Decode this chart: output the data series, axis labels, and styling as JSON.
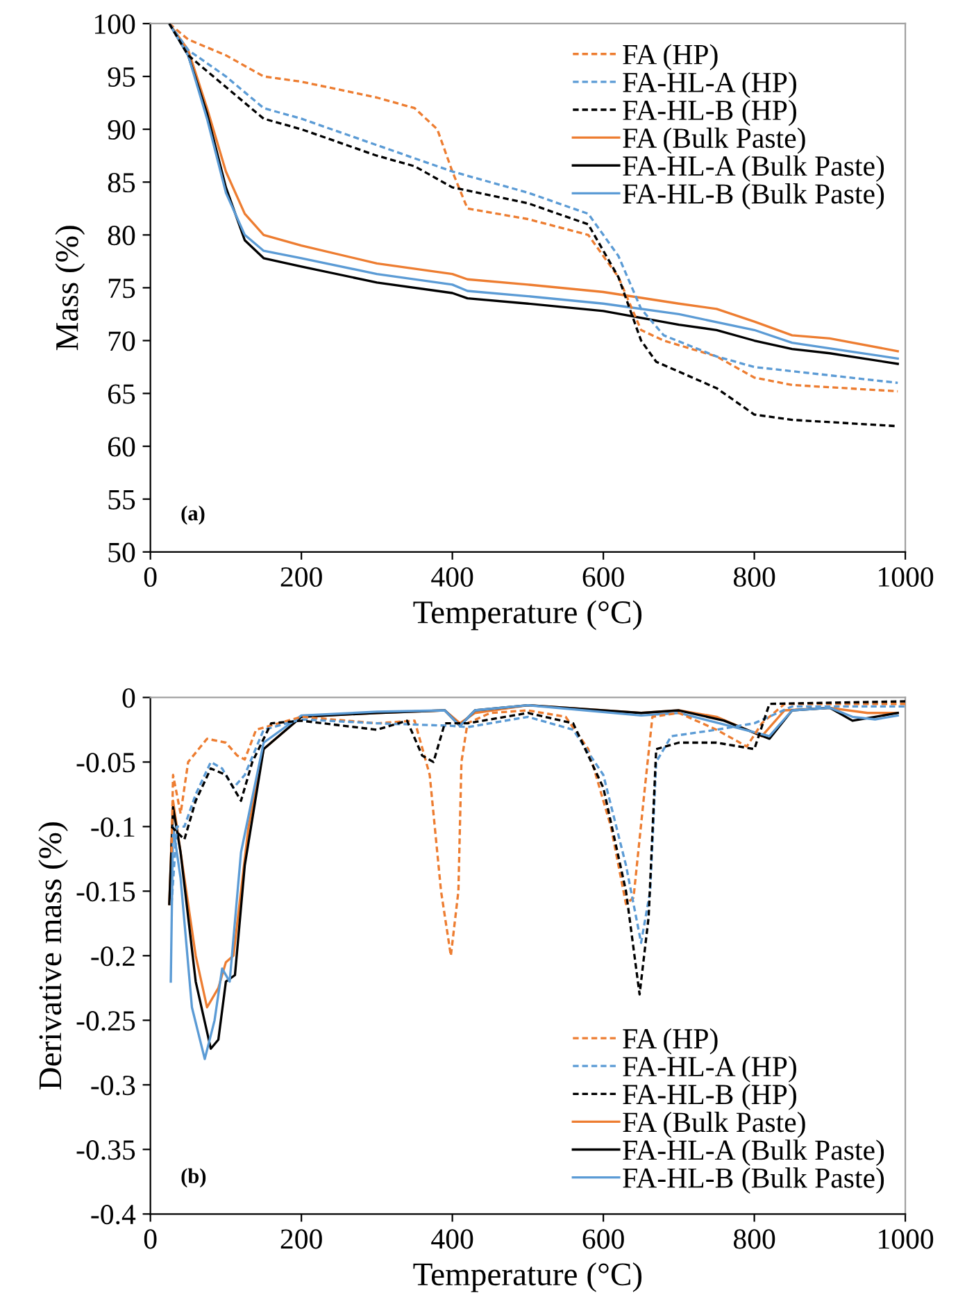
{
  "chart_data": [
    {
      "type": "line",
      "xlabel": "Temperature (°C)",
      "ylabel": "Mass (%)",
      "xlim": [
        0,
        1000
      ],
      "xticks": [
        0,
        200,
        400,
        600,
        800,
        1000
      ],
      "ylim": [
        50,
        100
      ],
      "yticks": [
        50,
        55,
        60,
        65,
        70,
        75,
        80,
        85,
        90,
        95,
        100
      ],
      "grid": false,
      "legend": "top right",
      "marker": "none",
      "annotations": [
        "(a)"
      ],
      "series": [
        {
          "name": "FA (HP)",
          "color": "#ed7d31",
          "line_style": "dashed",
          "x": [
            25,
            50,
            100,
            150,
            200,
            300,
            350,
            380,
            400,
            420,
            500,
            580,
            620,
            650,
            680,
            750,
            800,
            850,
            990
          ],
          "values": [
            100,
            98.5,
            97,
            95,
            94.5,
            93,
            92,
            90,
            86,
            82.5,
            81.5,
            80,
            76,
            71,
            70,
            68.5,
            66.5,
            65.8,
            65.2
          ]
        },
        {
          "name": "FA-HL-A (HP)",
          "color": "#5b9bd5",
          "line_style": "dashed",
          "x": [
            25,
            50,
            100,
            150,
            200,
            300,
            400,
            500,
            580,
            620,
            650,
            680,
            750,
            800,
            990
          ],
          "values": [
            100,
            97.5,
            95,
            92,
            91,
            88.5,
            86,
            84,
            82,
            78,
            73,
            70.5,
            68.5,
            67.5,
            66
          ]
        },
        {
          "name": "FA-HL-B (HP)",
          "color": "#000000",
          "line_style": "dashed",
          "x": [
            25,
            50,
            100,
            150,
            200,
            300,
            350,
            400,
            500,
            580,
            620,
            650,
            670,
            750,
            800,
            850,
            990
          ],
          "values": [
            100,
            97,
            94,
            91,
            90,
            87.5,
            86.5,
            84.5,
            83,
            81,
            76,
            70,
            68,
            65.5,
            63,
            62.5,
            61.9
          ]
        },
        {
          "name": "FA (Bulk Paste)",
          "color": "#ed7d31",
          "line_style": "solid",
          "x": [
            25,
            50,
            75,
            100,
            125,
            150,
            200,
            300,
            400,
            420,
            500,
            600,
            700,
            750,
            800,
            850,
            900,
            990
          ],
          "values": [
            100,
            97.5,
            92,
            86,
            82,
            80,
            79,
            77.3,
            76.3,
            75.8,
            75.3,
            74.6,
            73.5,
            73,
            71.8,
            70.5,
            70.2,
            69
          ]
        },
        {
          "name": "FA-HL-A (Bulk Paste)",
          "color": "#000000",
          "line_style": "solid",
          "x": [
            25,
            50,
            75,
            100,
            125,
            150,
            200,
            300,
            400,
            420,
            500,
            600,
            700,
            750,
            800,
            850,
            900,
            990
          ],
          "values": [
            100,
            97,
            91.5,
            84.5,
            79.5,
            77.8,
            77,
            75.5,
            74.5,
            74,
            73.5,
            72.8,
            71.5,
            71,
            70,
            69.2,
            68.8,
            67.8
          ]
        },
        {
          "name": "FA-HL-B (Bulk Paste)",
          "color": "#5b9bd5",
          "line_style": "solid",
          "x": [
            25,
            50,
            75,
            100,
            125,
            150,
            200,
            300,
            400,
            420,
            500,
            600,
            700,
            800,
            850,
            990
          ],
          "values": [
            100,
            97,
            91,
            84,
            80,
            78.5,
            77.8,
            76.3,
            75.3,
            74.7,
            74.2,
            73.5,
            72.5,
            71,
            69.8,
            68.3
          ]
        }
      ]
    },
    {
      "type": "line",
      "xlabel": "Temperature (°C)",
      "ylabel": "Derivative mass (%)",
      "xlim": [
        0,
        1000
      ],
      "xticks": [
        0,
        200,
        400,
        600,
        800,
        1000
      ],
      "ylim": [
        -0.4,
        0
      ],
      "yticks": [
        -0.4,
        -0.35,
        -0.3,
        -0.25,
        -0.2,
        -0.15,
        -0.1,
        -0.05,
        0
      ],
      "grid": false,
      "legend": "bottom right",
      "marker": "none",
      "annotations": [
        "(b)"
      ],
      "series": [
        {
          "name": "FA (HP)",
          "color": "#ed7d31",
          "line_style": "dashed",
          "x": [
            28,
            30,
            40,
            50,
            75,
            100,
            115,
            125,
            140,
            200,
            300,
            350,
            370,
            385,
            398,
            408,
            412,
            420,
            450,
            500,
            550,
            580,
            610,
            630,
            640,
            655,
            665,
            700,
            750,
            790,
            810,
            840,
            1000
          ],
          "values": [
            -0.12,
            -0.06,
            -0.09,
            -0.05,
            -0.032,
            -0.035,
            -0.045,
            -0.048,
            -0.025,
            -0.015,
            -0.02,
            -0.018,
            -0.06,
            -0.15,
            -0.2,
            -0.15,
            -0.05,
            -0.02,
            -0.012,
            -0.01,
            -0.015,
            -0.04,
            -0.1,
            -0.16,
            -0.155,
            -0.07,
            -0.015,
            -0.012,
            -0.025,
            -0.038,
            -0.02,
            -0.005,
            -0.005
          ]
        },
        {
          "name": "FA-HL-A (HP)",
          "color": "#5b9bd5",
          "line_style": "dashed",
          "x": [
            28,
            35,
            45,
            60,
            80,
            95,
            110,
            125,
            150,
            200,
            300,
            400,
            420,
            500,
            560,
            600,
            630,
            650,
            662,
            670,
            690,
            750,
            800,
            850,
            1000
          ],
          "values": [
            -0.16,
            -0.1,
            -0.1,
            -0.075,
            -0.05,
            -0.055,
            -0.07,
            -0.06,
            -0.025,
            -0.017,
            -0.02,
            -0.022,
            -0.023,
            -0.015,
            -0.025,
            -0.06,
            -0.13,
            -0.19,
            -0.15,
            -0.05,
            -0.03,
            -0.025,
            -0.02,
            -0.007,
            -0.007
          ]
        },
        {
          "name": "FA-HL-B (HP)",
          "color": "#000000",
          "line_style": "dashed",
          "x": [
            28,
            45,
            60,
            80,
            100,
            120,
            135,
            160,
            200,
            300,
            340,
            360,
            375,
            390,
            420,
            500,
            560,
            600,
            630,
            648,
            660,
            670,
            700,
            750,
            800,
            820,
            1000
          ],
          "values": [
            -0.1,
            -0.11,
            -0.08,
            -0.055,
            -0.06,
            -0.08,
            -0.05,
            -0.02,
            -0.018,
            -0.025,
            -0.018,
            -0.045,
            -0.05,
            -0.02,
            -0.02,
            -0.012,
            -0.02,
            -0.07,
            -0.15,
            -0.23,
            -0.17,
            -0.04,
            -0.035,
            -0.035,
            -0.04,
            -0.005,
            -0.003
          ]
        },
        {
          "name": "FA (Bulk Paste)",
          "color": "#ed7d31",
          "line_style": "solid",
          "x": [
            25,
            30,
            40,
            60,
            75,
            90,
            100,
            110,
            130,
            150,
            200,
            300,
            390,
            410,
            430,
            500,
            600,
            650,
            700,
            750,
            810,
            840,
            900,
            950,
            990
          ],
          "values": [
            -0.16,
            -0.08,
            -0.12,
            -0.2,
            -0.24,
            -0.225,
            -0.205,
            -0.2,
            -0.1,
            -0.04,
            -0.015,
            -0.012,
            -0.01,
            -0.02,
            -0.012,
            -0.006,
            -0.01,
            -0.012,
            -0.01,
            -0.015,
            -0.03,
            -0.01,
            -0.008,
            -0.012,
            -0.012
          ]
        },
        {
          "name": "FA-HL-A (Bulk Paste)",
          "color": "#000000",
          "line_style": "solid",
          "x": [
            25,
            30,
            40,
            60,
            80,
            90,
            100,
            112,
            125,
            150,
            200,
            300,
            390,
            410,
            430,
            500,
            650,
            700,
            760,
            820,
            850,
            900,
            930,
            960,
            990
          ],
          "values": [
            -0.16,
            -0.085,
            -0.12,
            -0.22,
            -0.272,
            -0.265,
            -0.22,
            -0.215,
            -0.13,
            -0.04,
            -0.015,
            -0.012,
            -0.01,
            -0.022,
            -0.01,
            -0.006,
            -0.012,
            -0.01,
            -0.018,
            -0.032,
            -0.01,
            -0.008,
            -0.018,
            -0.015,
            -0.012
          ]
        },
        {
          "name": "FA-HL-B (Bulk Paste)",
          "color": "#5b9bd5",
          "line_style": "solid",
          "x": [
            27,
            30,
            40,
            55,
            72,
            85,
            95,
            105,
            120,
            150,
            200,
            300,
            390,
            410,
            430,
            500,
            650,
            700,
            760,
            820,
            850,
            900,
            930,
            960,
            990
          ],
          "values": [
            -0.22,
            -0.1,
            -0.14,
            -0.24,
            -0.28,
            -0.25,
            -0.21,
            -0.22,
            -0.12,
            -0.035,
            -0.014,
            -0.011,
            -0.01,
            -0.022,
            -0.01,
            -0.006,
            -0.014,
            -0.012,
            -0.021,
            -0.03,
            -0.01,
            -0.008,
            -0.015,
            -0.017,
            -0.014
          ]
        }
      ]
    }
  ]
}
